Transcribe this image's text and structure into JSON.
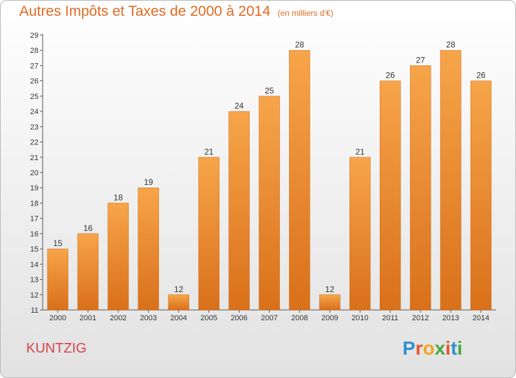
{
  "title": "Autres Impôts et Taxes de 2000 à 2014",
  "subtitle": "(en milliers d'€)",
  "commune": "KUNTZIG",
  "logo": {
    "letters": [
      "P",
      "r",
      "o",
      "x",
      "i",
      "t",
      "i"
    ],
    "colors": [
      "#2f8fd0",
      "#e8532b",
      "#f0a526",
      "#46a843",
      "#e8532b",
      "#2f8fd0",
      "#46a843"
    ]
  },
  "chart_data": {
    "type": "bar",
    "title": "Autres Impôts et Taxes de 2000 à 2014",
    "subtitle": "(en milliers d'€)",
    "categories": [
      "2000",
      "2001",
      "2002",
      "2003",
      "2004",
      "2005",
      "2006",
      "2007",
      "2008",
      "2009",
      "2010",
      "2011",
      "2012",
      "2013",
      "2014"
    ],
    "values": [
      15,
      16,
      18,
      19,
      12,
      21,
      24,
      25,
      28,
      12,
      21,
      26,
      27,
      28,
      26
    ],
    "ylim": [
      11,
      29
    ],
    "yticks": [
      11,
      12,
      13,
      14,
      15,
      16,
      17,
      18,
      19,
      20,
      21,
      22,
      23,
      24,
      25,
      26,
      27,
      28,
      29
    ],
    "grid": false,
    "bar_color": "#f28c2e",
    "data_labels": true
  }
}
